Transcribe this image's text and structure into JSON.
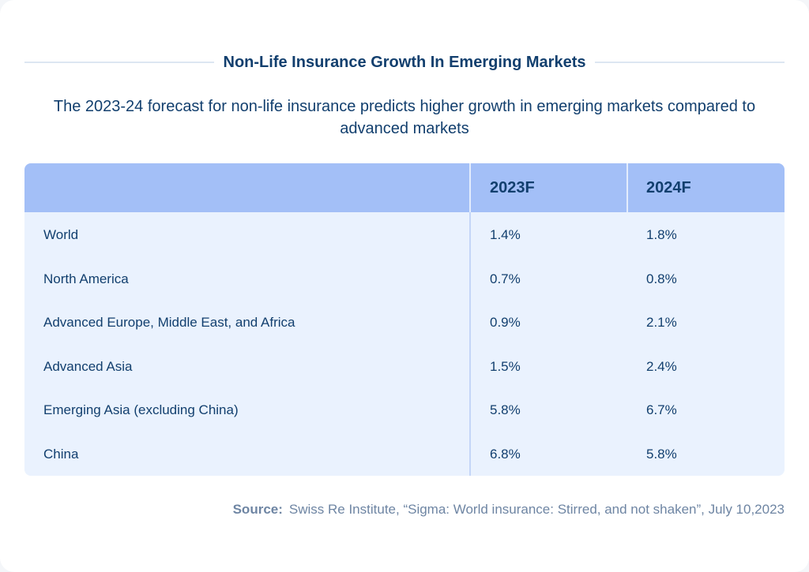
{
  "title": "Non-Life Insurance Growth In Emerging Markets",
  "subtitle": "The 2023-24 forecast for non-life insurance predicts higher growth in emerging markets compared to advanced markets",
  "colors": {
    "header_bg": "#a3bff7",
    "body_bg": "#eaf2fe",
    "text": "#123f6e",
    "source_text": "#6e85a3"
  },
  "chart_data": {
    "type": "table",
    "columns": [
      "",
      "2023F",
      "2024F"
    ],
    "rows": [
      {
        "label": "World",
        "values": [
          "1.4%",
          "1.8%"
        ]
      },
      {
        "label": "North America",
        "values": [
          "0.7%",
          "0.8%"
        ]
      },
      {
        "label": "Advanced Europe, Middle East, and Africa",
        "values": [
          "0.9%",
          "2.1%"
        ]
      },
      {
        "label": "Advanced Asia",
        "values": [
          "1.5%",
          "2.4%"
        ]
      },
      {
        "label": "Emerging Asia (excluding China)",
        "values": [
          "5.8%",
          "6.7%"
        ]
      },
      {
        "label": "China",
        "values": [
          "6.8%",
          "5.8%"
        ]
      }
    ]
  },
  "source": {
    "label": "Source:",
    "text": "Swiss Re Institute, “Sigma: World insurance: Stirred, and not shaken”, July 10,2023"
  }
}
